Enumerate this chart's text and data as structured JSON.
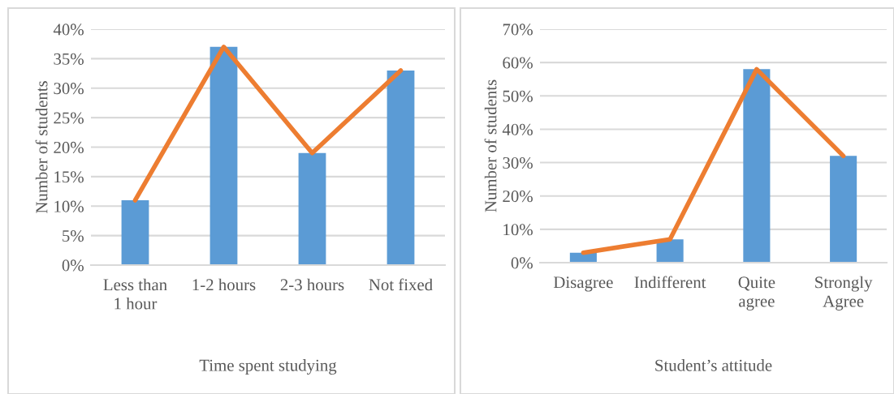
{
  "chart_data": [
    {
      "type": "bar",
      "xlabel": "Time spent studying",
      "ylabel": "Number of students",
      "categories": [
        "Less than\n1 hour",
        "1-2 hours",
        "2-3 hours",
        "Not fixed"
      ],
      "series": [
        {
          "color": "#5b9bd5",
          "values": [
            11,
            37,
            19,
            33
          ]
        },
        {
          "type": "line",
          "color": "#ed7d31",
          "values": [
            11,
            37,
            19,
            33
          ]
        }
      ],
      "ylim": [
        0,
        40
      ],
      "yticks": [
        {
          "value": 0,
          "label": "0%"
        },
        {
          "value": 5,
          "label": "5%"
        },
        {
          "value": 10,
          "label": "10%"
        },
        {
          "value": 15,
          "label": "15%"
        },
        {
          "value": 20,
          "label": "20%"
        },
        {
          "value": 25,
          "label": "25%"
        },
        {
          "value": 30,
          "label": "30%"
        },
        {
          "value": 35,
          "label": "35%"
        },
        {
          "value": 40,
          "label": "40%"
        }
      ],
      "grid": "y",
      "marker": "none",
      "line_style": "solid"
    },
    {
      "type": "bar",
      "xlabel": "Student’s attitude",
      "ylabel": "Number of students",
      "categories": [
        "Disagree",
        "Indifferent",
        "Quite\nagree",
        "Strongly\nAgree"
      ],
      "series": [
        {
          "color": "#5b9bd5",
          "values": [
            3,
            7,
            58,
            32
          ]
        },
        {
          "type": "line",
          "color": "#ed7d31",
          "values": [
            3,
            7,
            58,
            32
          ]
        }
      ],
      "ylim": [
        0,
        70
      ],
      "yticks": [
        {
          "value": 0,
          "label": "0%"
        },
        {
          "value": 10,
          "label": "10%"
        },
        {
          "value": 20,
          "label": "20%"
        },
        {
          "value": 30,
          "label": "30%"
        },
        {
          "value": 40,
          "label": "40%"
        },
        {
          "value": 50,
          "label": "50%"
        },
        {
          "value": 60,
          "label": "60%"
        },
        {
          "value": 70,
          "label": "70%"
        }
      ],
      "grid": "y",
      "marker": "none",
      "line_style": "solid"
    }
  ]
}
